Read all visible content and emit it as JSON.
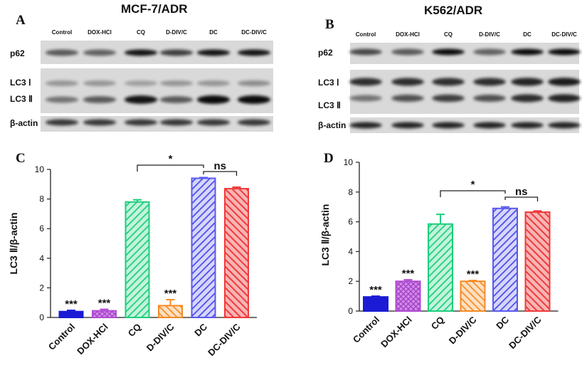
{
  "blots": [
    {
      "panel": "A",
      "title": "MCF-7/ADR",
      "lanes": [
        "Control",
        "DOX-HCl",
        "CQ",
        "D-DIV/C",
        "DC",
        "DC-DIV/C"
      ],
      "bands": [
        "p62",
        "LC3 Ⅰ",
        "LC3 Ⅱ",
        "β-actin"
      ]
    },
    {
      "panel": "B",
      "title": "K562/ADR",
      "lanes": [
        "Control",
        "DOX-HCl",
        "CQ",
        "D-DIV/C",
        "DC",
        "DC-DIV/C"
      ],
      "bands": [
        "p62",
        "LC3 Ⅰ",
        "LC3 Ⅱ",
        "β-actin"
      ]
    }
  ],
  "chart_data": [
    {
      "panel": "C",
      "type": "bar",
      "categories": [
        "Control",
        "DOX-HCl",
        "CQ",
        "D-DIV/C",
        "DC",
        "DC-DIV/C"
      ],
      "values": [
        0.4,
        0.45,
        7.8,
        0.8,
        9.4,
        8.7
      ],
      "errors": [
        0.08,
        0.1,
        0.15,
        0.4,
        0.05,
        0.1
      ],
      "significance": [
        "***",
        "***",
        "",
        "***",
        "",
        ""
      ],
      "colors": [
        "#1b1bd6",
        "#b04ad2",
        "#1ccf7c",
        "#f58b25",
        "#5a5aee",
        "#ef3b3b"
      ],
      "ylabel": "LC3 Ⅱ/β-actin",
      "ylim": [
        0,
        10
      ],
      "yticks": [
        0,
        2,
        4,
        6,
        8,
        10
      ],
      "brackets": [
        {
          "from": "CQ",
          "to": "DC",
          "label": "*"
        },
        {
          "from": "DC",
          "to": "DC-DIV/C",
          "label": "ns"
        }
      ]
    },
    {
      "panel": "D",
      "type": "bar",
      "categories": [
        "Control",
        "DOX-HCl",
        "CQ",
        "D-DIV/C",
        "DC",
        "DC-DIV/C"
      ],
      "values": [
        0.95,
        2.0,
        5.85,
        2.0,
        6.9,
        6.65
      ],
      "errors": [
        0.05,
        0.1,
        0.65,
        0.05,
        0.1,
        0.08
      ],
      "significance": [
        "***",
        "***",
        "",
        "***",
        "",
        ""
      ],
      "colors": [
        "#1b1bd6",
        "#b04ad2",
        "#1ccf7c",
        "#f58b25",
        "#5a5aee",
        "#ef3b3b"
      ],
      "ylabel": "LC3 Ⅱ/β-actin",
      "ylim": [
        0,
        10
      ],
      "yticks": [
        0,
        2,
        4,
        6,
        8,
        10
      ],
      "brackets": [
        {
          "from": "CQ",
          "to": "DC",
          "label": "*"
        },
        {
          "from": "DC",
          "to": "DC-DIV/C",
          "label": "ns"
        }
      ]
    }
  ]
}
